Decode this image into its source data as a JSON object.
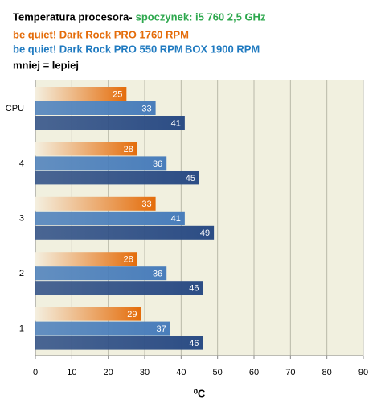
{
  "chart_data": {
    "type": "hbar",
    "title": "Temperatura procesora-",
    "subtitle": "spoczynek: i5 760 2,5 GHz",
    "note": "mniej = lepiej",
    "x_label": "⁰C",
    "categories": [
      "CPU",
      "4",
      "3",
      "2",
      "1"
    ],
    "series": [
      {
        "name": "be quiet! Dark Rock PRO 1760  RPM",
        "color": "#e46c0a",
        "values": [
          25,
          28,
          33,
          28,
          29
        ]
      },
      {
        "name": "be quiet! Dark Rock PRO 550  RPM",
        "color": "#4a7ebb",
        "values": [
          33,
          36,
          41,
          36,
          37
        ]
      },
      {
        "name": "BOX 1900  RPM",
        "color": "#2c4d85",
        "values": [
          41,
          45,
          49,
          46,
          46
        ]
      }
    ],
    "xlim": [
      0,
      90
    ],
    "xticks": [
      0,
      10,
      20,
      30,
      40,
      50,
      60,
      70,
      80,
      90
    ],
    "grid": true
  }
}
